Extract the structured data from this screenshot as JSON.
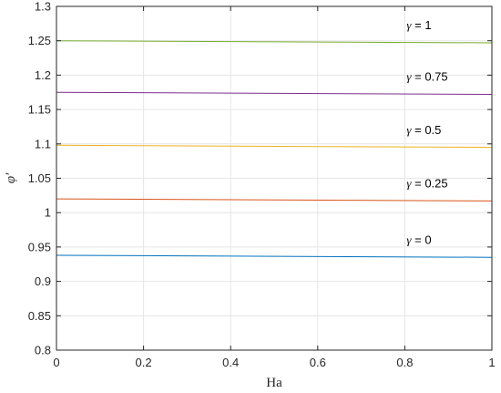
{
  "chart_data": {
    "type": "line",
    "xlabel": "Ha",
    "ylabel": "φ′",
    "xlim": [
      0,
      1
    ],
    "ylim": [
      0.8,
      1.3
    ],
    "x_ticks": [
      "0",
      "0.2",
      "0.4",
      "0.6",
      "0.8",
      "1"
    ],
    "y_ticks": [
      "0.8",
      "0.85",
      "0.9",
      "0.95",
      "1",
      "1.05",
      "1.1",
      "1.15",
      "1.2",
      "1.25",
      "1.3"
    ],
    "grid": true,
    "series": [
      {
        "name": "γ = 0",
        "x": [
          0,
          1
        ],
        "y": [
          0.938,
          0.935
        ],
        "color": "#0072BD"
      },
      {
        "name": "γ = 0.25",
        "x": [
          0,
          1
        ],
        "y": [
          1.02,
          1.017
        ],
        "color": "#D95319"
      },
      {
        "name": "γ = 0.5",
        "x": [
          0,
          1
        ],
        "y": [
          1.098,
          1.095
        ],
        "color": "#EDB120"
      },
      {
        "name": "γ = 0.75",
        "x": [
          0,
          1
        ],
        "y": [
          1.175,
          1.172
        ],
        "color": "#7E2F8E"
      },
      {
        "name": "γ = 1",
        "x": [
          0,
          1
        ],
        "y": [
          1.25,
          1.247
        ],
        "color": "#77AC30"
      }
    ],
    "annotations": [
      {
        "gamma": "γ",
        "text": " = 1",
        "x": 0.8,
        "y": 1.26
      },
      {
        "gamma": "γ",
        "text": " = 0.75",
        "x": 0.8,
        "y": 1.185
      },
      {
        "gamma": "γ",
        "text": " = 0.5",
        "x": 0.8,
        "y": 1.108
      },
      {
        "gamma": "γ",
        "text": " = 0.25",
        "x": 0.8,
        "y": 1.03
      },
      {
        "gamma": "γ",
        "text": " = 0",
        "x": 0.8,
        "y": 0.948
      }
    ]
  }
}
